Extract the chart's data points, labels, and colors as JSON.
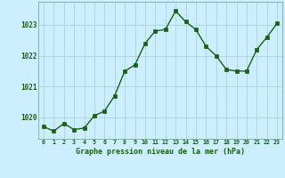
{
  "hours": [
    0,
    1,
    2,
    3,
    4,
    5,
    6,
    7,
    8,
    9,
    10,
    11,
    12,
    13,
    14,
    15,
    16,
    17,
    18,
    19,
    20,
    21,
    22,
    23
  ],
  "pressure": [
    1019.7,
    1019.55,
    1019.8,
    1019.6,
    1019.65,
    1020.05,
    1020.2,
    1020.7,
    1021.5,
    1021.7,
    1022.4,
    1022.8,
    1022.85,
    1023.45,
    1023.1,
    1022.85,
    1022.3,
    1022.0,
    1021.55,
    1021.5,
    1021.5,
    1022.2,
    1022.6,
    1023.05
  ],
  "line_color": "#1a5e1a",
  "marker": "s",
  "marker_size": 2.5,
  "background_color": "#cceeff",
  "grid_color": "#b0d8d8",
  "xlabel": "Graphe pression niveau de la mer (hPa)",
  "xlabel_color": "#1a5e1a",
  "tick_color": "#1a5e1a",
  "ylim": [
    1019.3,
    1023.75
  ],
  "yticks": [
    1020,
    1021,
    1022,
    1023
  ],
  "xticks": [
    0,
    1,
    2,
    3,
    4,
    5,
    6,
    7,
    8,
    9,
    10,
    11,
    12,
    13,
    14,
    15,
    16,
    17,
    18,
    19,
    20,
    21,
    22,
    23
  ]
}
